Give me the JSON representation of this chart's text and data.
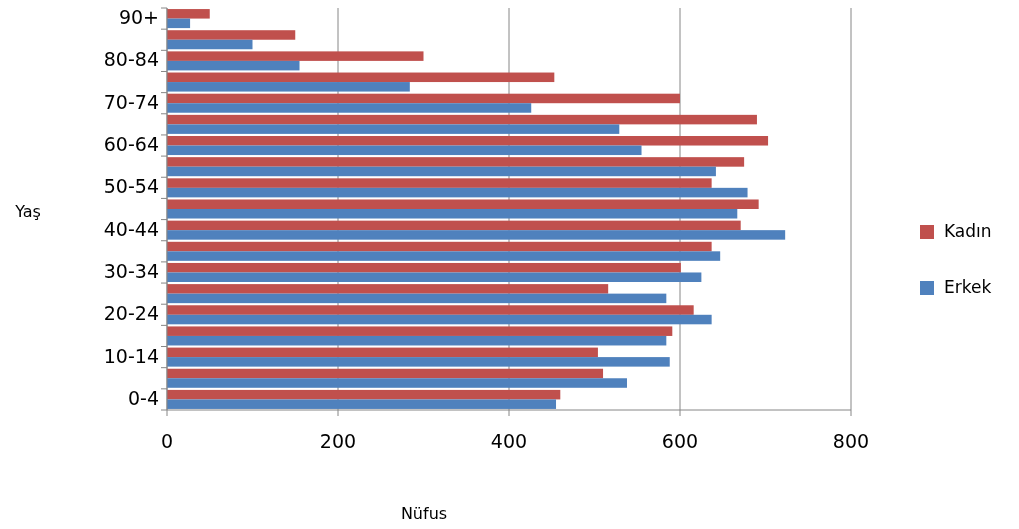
{
  "chart_data": {
    "type": "bar",
    "orientation": "horizontal",
    "xlabel": "Nüfus",
    "ylabel": "Yaş",
    "categories": [
      "90+",
      null,
      "80-84",
      null,
      "70-74",
      null,
      "60-64",
      null,
      "50-54",
      null,
      "40-44",
      null,
      "30-34",
      null,
      "20-24",
      null,
      "10-14",
      null,
      "0-4"
    ],
    "series": [
      {
        "name": "Kadın",
        "color": "#c0504d",
        "values": [
          50,
          150,
          300,
          453,
          600,
          690,
          703,
          675,
          637,
          692,
          671,
          637,
          601,
          516,
          616,
          591,
          504,
          510,
          460
        ]
      },
      {
        "name": "Erkek",
        "color": "#4f81bd",
        "values": [
          27,
          100,
          155,
          284,
          426,
          529,
          555,
          642,
          679,
          667,
          723,
          647,
          625,
          584,
          637,
          584,
          588,
          538,
          455
        ]
      }
    ],
    "xlim": [
      0,
      800
    ],
    "xticks": [
      0,
      200,
      400,
      600,
      800
    ],
    "grid": "x",
    "legend": "right"
  }
}
